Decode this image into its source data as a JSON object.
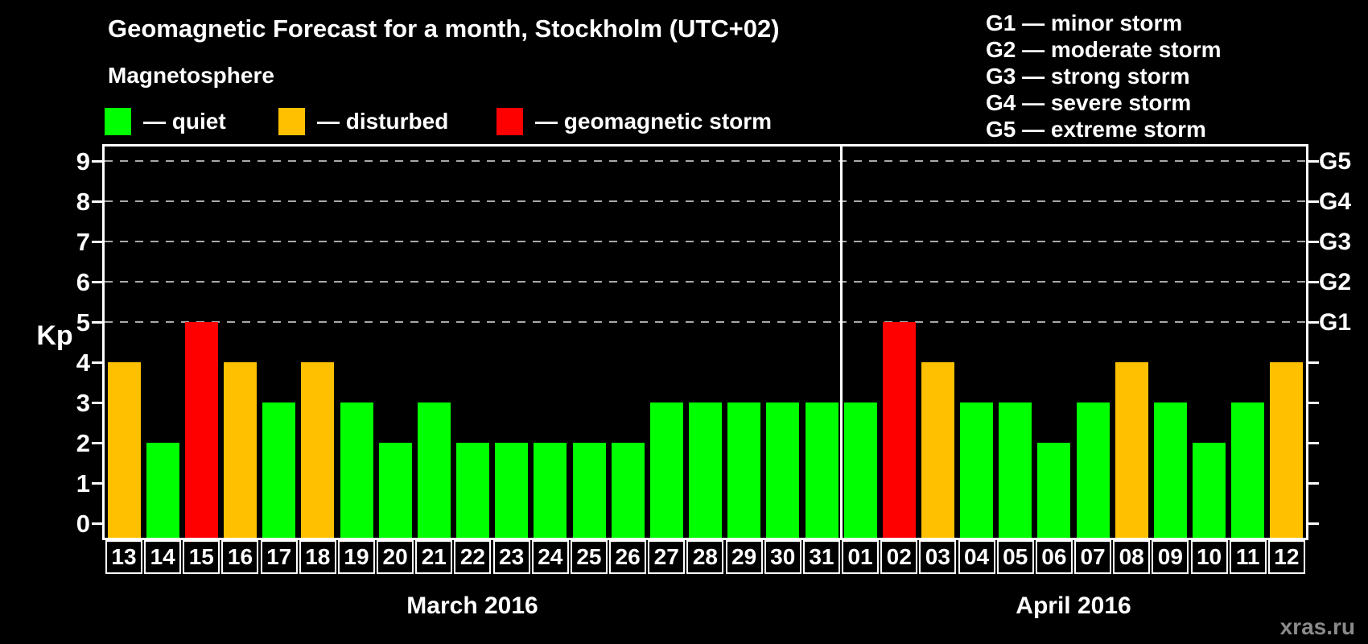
{
  "title": "Geomagnetic Forecast for a month, Stockholm (UTC+02)",
  "subtitle": "Magnetosphere",
  "watermark": "xras.ru",
  "colors": {
    "quiet": "#00ff00",
    "disturbed": "#ffc000",
    "storm": "#ff0000",
    "background": "#000000",
    "text": "#ffffff",
    "gridline": "#a9a9a9",
    "watermark": "#8a8a8a"
  },
  "magnetosphere_legend": [
    {
      "state": "quiet",
      "label": "— quiet",
      "color": "#00ff00"
    },
    {
      "state": "disturbed",
      "label": "— disturbed",
      "color": "#ffc000"
    },
    {
      "state": "storm",
      "label": "— geomagnetic storm",
      "color": "#ff0000"
    }
  ],
  "g_scale_legend": [
    "G1 — minor storm",
    "G2 — moderate storm",
    "G3 — strong storm",
    "G4 — severe storm",
    "G5 — extreme storm"
  ],
  "chart_data": {
    "type": "bar",
    "title": "Geomagnetic Forecast for a month, Stockholm (UTC+02)",
    "ylabel": "Kp",
    "ylim": [
      0,
      9
    ],
    "grid": "dashed horizontal lines at Kp 5-9",
    "kp_ticks": [
      0,
      1,
      2,
      3,
      4,
      5,
      6,
      7,
      8,
      9
    ],
    "g_ticks": [
      {
        "kp": 5,
        "label": "G1"
      },
      {
        "kp": 6,
        "label": "G2"
      },
      {
        "kp": 7,
        "label": "G3"
      },
      {
        "kp": 8,
        "label": "G4"
      },
      {
        "kp": 9,
        "label": "G5"
      }
    ],
    "grid_kp_levels": [
      5,
      6,
      7,
      8,
      9
    ],
    "series": [
      {
        "month": "March 2016",
        "days": [
          "13",
          "14",
          "15",
          "16",
          "17",
          "18",
          "19",
          "20",
          "21",
          "22",
          "23",
          "24",
          "25",
          "26",
          "27",
          "28",
          "29",
          "30",
          "31"
        ],
        "values": [
          4,
          2,
          5,
          4,
          3,
          4,
          3,
          2,
          3,
          2,
          2,
          2,
          2,
          2,
          3,
          3,
          3,
          3,
          3
        ],
        "states": [
          "disturbed",
          "quiet",
          "storm",
          "disturbed",
          "quiet",
          "disturbed",
          "quiet",
          "quiet",
          "quiet",
          "quiet",
          "quiet",
          "quiet",
          "quiet",
          "quiet",
          "quiet",
          "quiet",
          "quiet",
          "quiet",
          "quiet"
        ]
      },
      {
        "month": "April 2016",
        "days": [
          "01",
          "02",
          "03",
          "04",
          "05",
          "06",
          "07",
          "08",
          "09",
          "10",
          "11",
          "12"
        ],
        "values": [
          3,
          5,
          4,
          3,
          3,
          2,
          3,
          4,
          3,
          2,
          3,
          4
        ],
        "states": [
          "quiet",
          "storm",
          "disturbed",
          "quiet",
          "quiet",
          "quiet",
          "quiet",
          "disturbed",
          "quiet",
          "quiet",
          "quiet",
          "disturbed"
        ]
      }
    ]
  }
}
